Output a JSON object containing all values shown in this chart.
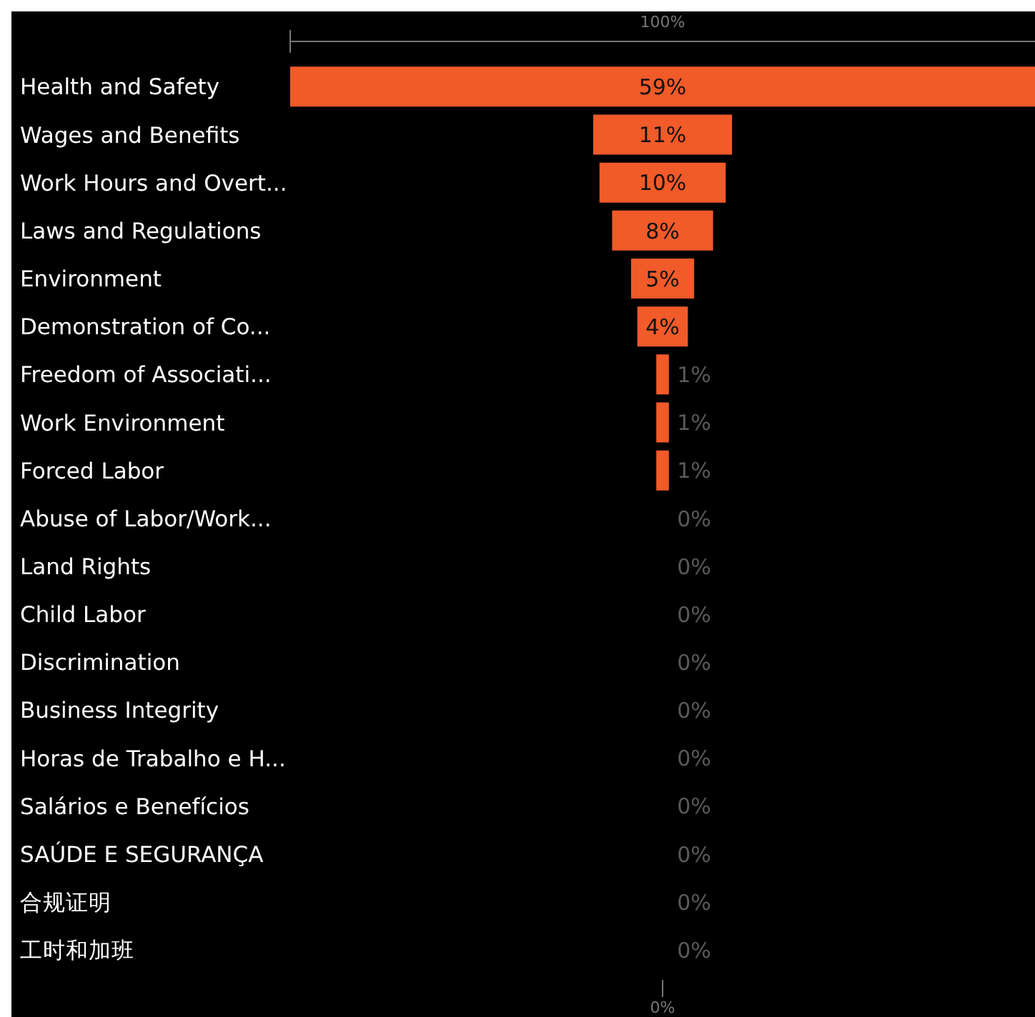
{
  "chart_data": {
    "type": "other",
    "categories": [
      "Health and Safety",
      "Wages and Benefits",
      "Work Hours and Overt...",
      "Laws and Regulations",
      "Environment",
      "Demonstration of Co...",
      "Freedom of Associati...",
      "Work Environment",
      "Forced Labor",
      "Abuse of Labor/Work...",
      "Land Rights",
      "Child Labor",
      "Discrimination",
      "Business Integrity",
      "Horas de Trabalho e H...",
      "Salários e Benefícios",
      "SAÚDE E SEGURANÇA",
      "合规证明",
      "工时和加班"
    ],
    "values": [
      59,
      11,
      10,
      8,
      5,
      4,
      1,
      1,
      1,
      0,
      0,
      0,
      0,
      0,
      0,
      0,
      0,
      0,
      0
    ],
    "value_labels": [
      "59%",
      "11%",
      "10%",
      "8%",
      "5%",
      "4%",
      "1%",
      "1%",
      "1%",
      "0%",
      "0%",
      "0%",
      "0%",
      "0%",
      "0%",
      "0%",
      "0%",
      "0%",
      "0%"
    ],
    "color": "#f15a29",
    "annotations": [
      "100%",
      "0%"
    ]
  }
}
